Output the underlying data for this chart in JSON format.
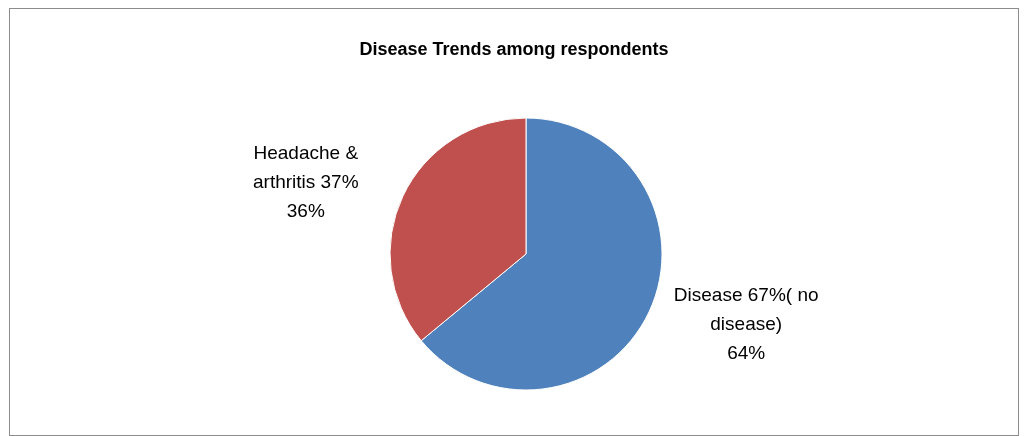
{
  "chart_data": {
    "type": "pie",
    "title": "Disease Trends among respondents",
    "categories": [
      "Disease 67%( no disease)",
      "Headache & arthritis 37%"
    ],
    "values": [
      64,
      36
    ],
    "value_labels": [
      "64%",
      "36%"
    ],
    "colors": [
      "#4f81bd",
      "#c0504d"
    ],
    "legend": false
  }
}
